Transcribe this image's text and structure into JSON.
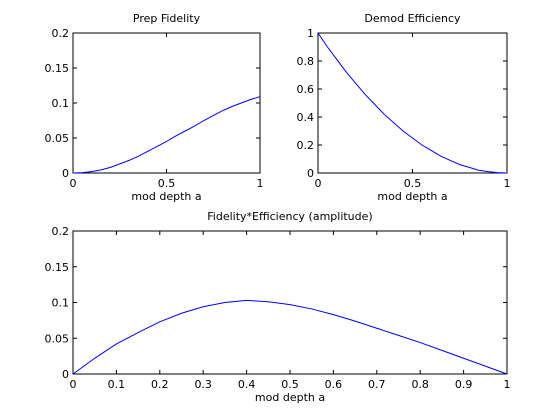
{
  "chart_data": [
    {
      "type": "line",
      "title": "Prep Fidelity",
      "xlabel": "mod depth a",
      "ylabel": "",
      "xlim": [
        0,
        1
      ],
      "ylim": [
        0,
        0.2
      ],
      "xticks": [
        "0",
        "0.5",
        "1"
      ],
      "yticks": [
        "0",
        "0.05",
        "0.1",
        "0.15",
        "0.2"
      ],
      "grid": false,
      "series": [
        {
          "color": "#0000ff",
          "x": [
            0,
            0.05,
            0.1,
            0.15,
            0.2,
            0.25,
            0.3,
            0.35,
            0.4,
            0.45,
            0.5,
            0.55,
            0.6,
            0.65,
            0.7,
            0.75,
            0.8,
            0.85,
            0.9,
            0.95,
            1
          ],
          "y": [
            0,
            0.0005,
            0.002,
            0.0045,
            0.008,
            0.013,
            0.018,
            0.024,
            0.031,
            0.038,
            0.045,
            0.053,
            0.06,
            0.067,
            0.075,
            0.082,
            0.089,
            0.095,
            0.1,
            0.105,
            0.109
          ]
        }
      ]
    },
    {
      "type": "line",
      "title": "Demod Efficiency",
      "xlabel": "mod depth a",
      "ylabel": "",
      "xlim": [
        0,
        1
      ],
      "ylim": [
        0,
        1
      ],
      "xticks": [
        "0",
        "0.5",
        "1"
      ],
      "yticks": [
        "0",
        "0.2",
        "0.4",
        "0.6",
        "0.8",
        "1"
      ],
      "grid": false,
      "series": [
        {
          "color": "#0000ff",
          "x": [
            0,
            0.05,
            0.1,
            0.15,
            0.2,
            0.25,
            0.3,
            0.35,
            0.4,
            0.45,
            0.5,
            0.55,
            0.6,
            0.65,
            0.7,
            0.75,
            0.8,
            0.85,
            0.9,
            0.95,
            1
          ],
          "y": [
            1,
            0.9,
            0.81,
            0.72,
            0.64,
            0.56,
            0.49,
            0.42,
            0.36,
            0.3,
            0.25,
            0.2,
            0.16,
            0.12,
            0.09,
            0.06,
            0.04,
            0.02,
            0.01,
            0.003,
            0
          ]
        }
      ]
    },
    {
      "type": "line",
      "title": "Fidelity*Efficiency (amplitude)",
      "xlabel": "mod depth a",
      "ylabel": "",
      "xlim": [
        0,
        1
      ],
      "ylim": [
        0,
        0.2
      ],
      "xticks": [
        "0",
        "0.1",
        "0.2",
        "0.3",
        "0.4",
        "0.5",
        "0.6",
        "0.7",
        "0.8",
        "0.9",
        "1"
      ],
      "yticks": [
        "0",
        "0.05",
        "0.1",
        "0.15",
        "0.2"
      ],
      "grid": false,
      "series": [
        {
          "color": "#0000ff",
          "x": [
            0,
            0.05,
            0.1,
            0.15,
            0.2,
            0.25,
            0.3,
            0.35,
            0.4,
            0.45,
            0.5,
            0.55,
            0.6,
            0.65,
            0.7,
            0.75,
            0.8,
            0.85,
            0.9,
            0.95,
            1
          ],
          "y": [
            0,
            0.022,
            0.042,
            0.058,
            0.073,
            0.085,
            0.094,
            0.1,
            0.103,
            0.101,
            0.097,
            0.091,
            0.083,
            0.074,
            0.064,
            0.054,
            0.044,
            0.033,
            0.022,
            0.011,
            0
          ]
        }
      ]
    }
  ]
}
